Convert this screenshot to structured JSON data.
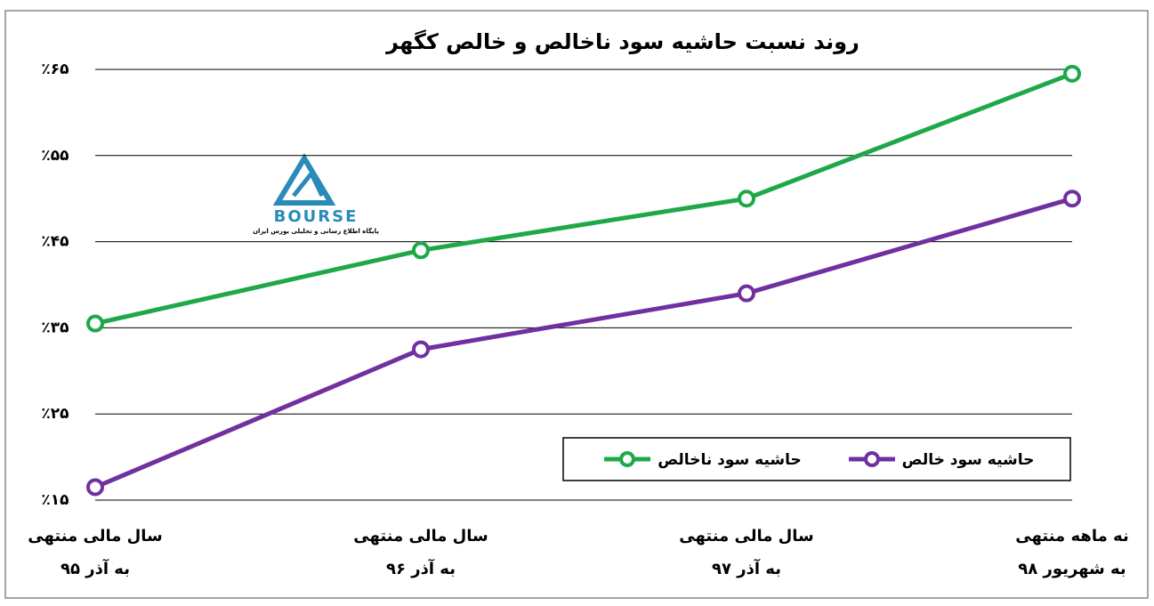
{
  "chart_data": {
    "type": "line",
    "title": "روند نسبت حاشیه سود ناخالص و خالص کگهر",
    "categories": [
      [
        "سال مالی منتهی",
        "به آذر ۹۵"
      ],
      [
        "سال مالی منتهی",
        "به آذر ۹۶"
      ],
      [
        "سال مالی منتهی",
        "به آذر ۹۷"
      ],
      [
        "نه ماهه منتهی",
        "به شهریور ۹۸"
      ]
    ],
    "series": [
      {
        "name": "حاشیه سود ناخالص",
        "color": "#1ea84a",
        "values": [
          35.5,
          44,
          50,
          64.5
        ]
      },
      {
        "name": "حاشیه سود خالص",
        "color": "#7030a0",
        "values": [
          16.5,
          32.5,
          39,
          50
        ]
      }
    ],
    "ylim": [
      15,
      65
    ],
    "yticks": [
      {
        "value": 15,
        "label": "٪۱۵"
      },
      {
        "value": 25,
        "label": "٪۲۵"
      },
      {
        "value": 35,
        "label": "٪۳۵"
      },
      {
        "value": 45,
        "label": "٪۴۵"
      },
      {
        "value": 55,
        "label": "٪۵۵"
      },
      {
        "value": 65,
        "label": "٪۶۵"
      }
    ],
    "grid": true,
    "watermark": {
      "text": "BOURSE",
      "tagline": "پایگاه اطلاع رسانی و تحلیلی بورس ایران"
    }
  }
}
